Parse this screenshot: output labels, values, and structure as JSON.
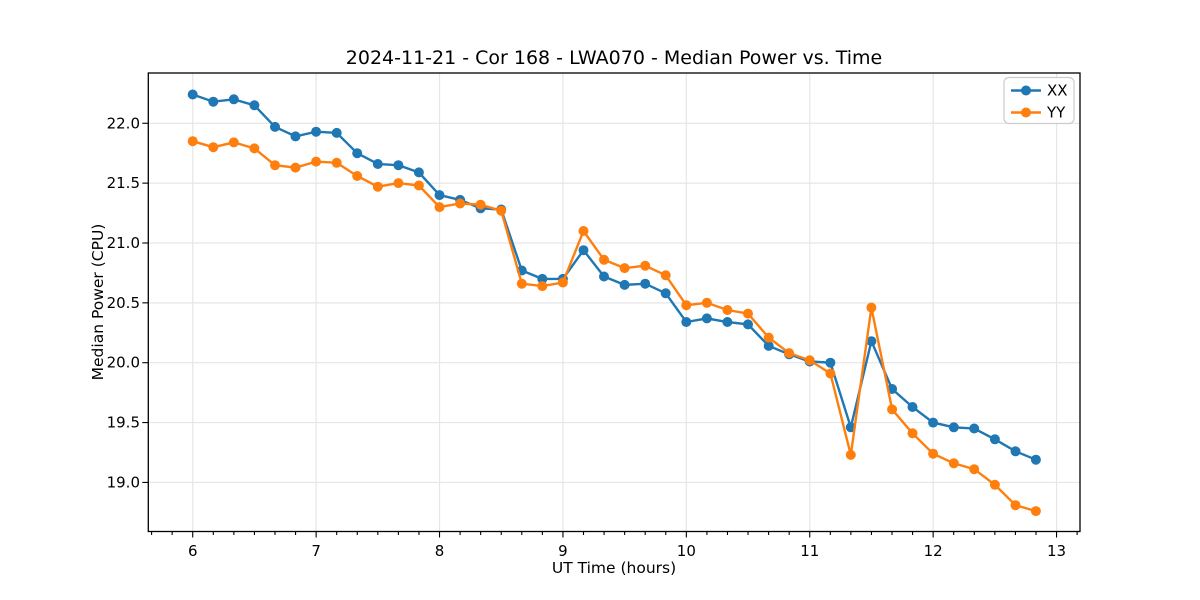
{
  "chart_data": {
    "type": "line",
    "title": "2024-11-21 - Cor 168 - LWA070 - Median Power vs. Time",
    "xlabel": "UT Time (hours)",
    "ylabel": "Median Power (CPU)",
    "xlim": [
      5.64,
      13.19
    ],
    "ylim": [
      18.59,
      22.42
    ],
    "xticks": [
      6,
      7,
      8,
      9,
      10,
      11,
      12,
      13
    ],
    "xtick_labels": [
      "6",
      "7",
      "8",
      "9",
      "10",
      "11",
      "12",
      "13"
    ],
    "yticks": [
      19.0,
      19.5,
      20.0,
      20.5,
      21.0,
      21.5,
      22.0
    ],
    "ytick_labels": [
      "19.0",
      "19.5",
      "20.0",
      "20.5",
      "21.0",
      "21.5",
      "22.0"
    ],
    "grid": true,
    "grid_color": "#e6e6e6",
    "legend_position": "upper right",
    "marker": "o",
    "x": [
      6.0,
      6.167,
      6.333,
      6.5,
      6.667,
      6.833,
      7.0,
      7.167,
      7.333,
      7.5,
      7.667,
      7.833,
      8.0,
      8.167,
      8.333,
      8.5,
      8.667,
      8.833,
      9.0,
      9.167,
      9.333,
      9.5,
      9.667,
      9.833,
      10.0,
      10.167,
      10.333,
      10.5,
      10.667,
      10.833,
      11.0,
      11.167,
      11.333,
      11.5,
      11.667,
      11.833,
      12.0,
      12.167,
      12.333,
      12.5,
      12.667,
      12.833
    ],
    "series": [
      {
        "name": "XX",
        "color": "#1f77b4",
        "values": [
          22.24,
          22.18,
          22.2,
          22.15,
          21.97,
          21.89,
          21.93,
          21.92,
          21.75,
          21.66,
          21.65,
          21.59,
          21.4,
          21.36,
          21.29,
          21.28,
          20.77,
          20.7,
          20.7,
          20.94,
          20.72,
          20.65,
          20.66,
          20.58,
          20.34,
          20.37,
          20.34,
          20.32,
          20.14,
          20.07,
          20.01,
          20.0,
          19.46,
          20.18,
          19.78,
          19.63,
          19.5,
          19.46,
          19.45,
          19.36,
          19.26,
          19.19
        ]
      },
      {
        "name": "YY",
        "color": "#ff7f0e",
        "values": [
          21.85,
          21.8,
          21.84,
          21.79,
          21.65,
          21.63,
          21.68,
          21.67,
          21.56,
          21.47,
          21.5,
          21.48,
          21.3,
          21.33,
          21.32,
          21.27,
          20.66,
          20.64,
          20.67,
          21.1,
          20.86,
          20.79,
          20.81,
          20.73,
          20.48,
          20.5,
          20.44,
          20.41,
          20.21,
          20.08,
          20.02,
          19.91,
          19.23,
          20.46,
          19.61,
          19.41,
          19.24,
          19.16,
          19.11,
          18.98,
          18.81,
          18.76
        ]
      }
    ]
  }
}
